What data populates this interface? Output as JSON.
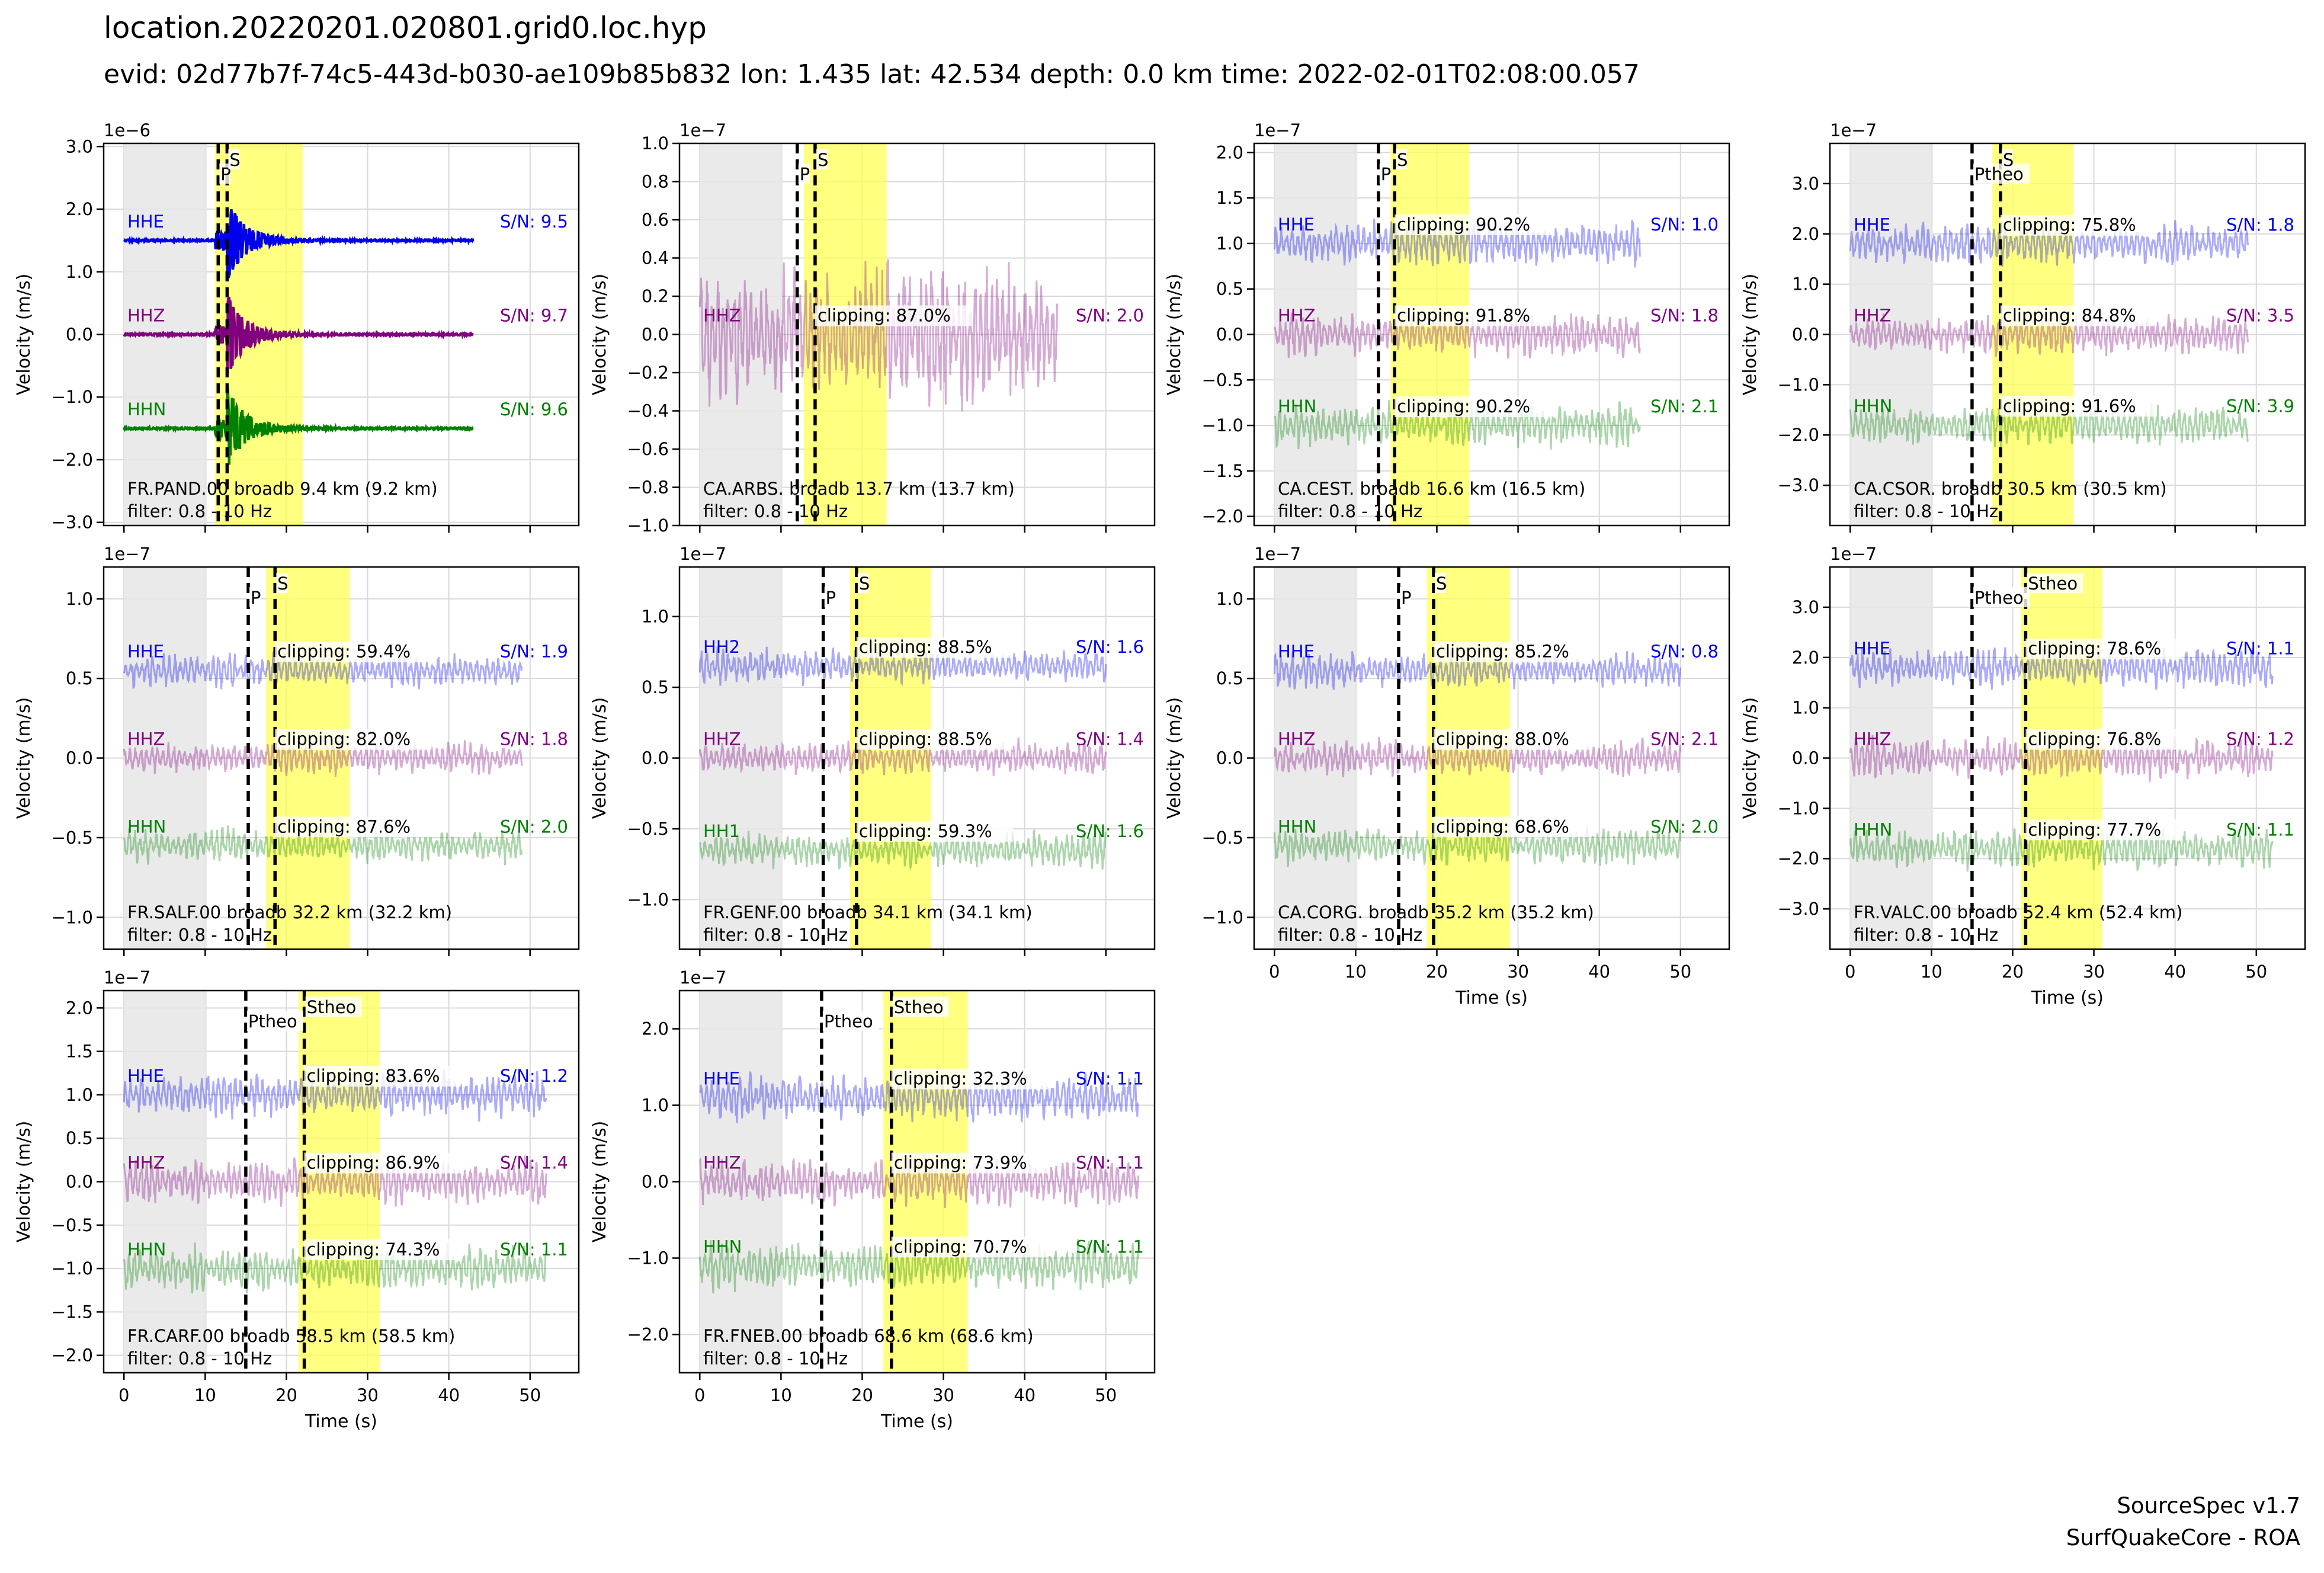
{
  "figure": {
    "title": "location.20220201.020801.grid0.loc.hyp",
    "subtitle": "evid: 02d77b7f-74c5-443d-b030-ae109b85b832 lon: 1.435 lat: 42.534 depth: 0.0 km time: 2022-02-01T02:08:00.057",
    "footer_line1": "SourceSpec v1.7",
    "footer_line2": "SurfQuakeCore - ROA",
    "ylabel": "Velocity (m/s)",
    "xlabel": "Time (s)",
    "filter_label": "filter: 0.8 - 10 Hz",
    "colors": {
      "HHE": "#0000ee",
      "HHZ": "#800080",
      "HHN": "#008000",
      "signal_window": "#ffff55",
      "noise_window": "#e6e6e6",
      "picks": "#000000",
      "grid": "#d9d9d9"
    }
  },
  "chart_data": [
    {
      "type": "line",
      "station": "FR.PAND.00 broadb 9.4 km (9.2 km)",
      "scale_label": "1e−6",
      "ylim": [
        -3.05,
        3.05
      ],
      "yticks": [
        -3,
        -2,
        -1,
        0,
        1,
        2,
        3
      ],
      "ytick_labels": [
        "−3.0",
        "−2.0",
        "−1.0",
        "0.0",
        "1.0",
        "2.0",
        "3.0"
      ],
      "xlim": [
        -2.5,
        56
      ],
      "xticks": [
        0,
        10,
        20,
        30,
        40,
        50
      ],
      "show_x": false,
      "noise_window": [
        0,
        10.2
      ],
      "signal_window": [
        11.2,
        22
      ],
      "picks": [
        {
          "label": "P",
          "t": 11.6
        },
        {
          "label": "S",
          "t": 12.7
        }
      ],
      "duration": 43,
      "amp": 0.12,
      "clear": true,
      "series": [
        {
          "channel": "HHE",
          "offset": 1.5,
          "sn": "S/N: 9.5",
          "clipping": "",
          "color": "#0000ee"
        },
        {
          "channel": "HHZ",
          "offset": 0.0,
          "sn": "S/N: 9.7",
          "clipping": "",
          "color": "#800080"
        },
        {
          "channel": "HHN",
          "offset": -1.5,
          "sn": "S/N: 9.6",
          "clipping": "",
          "color": "#008000"
        }
      ]
    },
    {
      "type": "line",
      "station": "CA.ARBS. broadb 13.7 km (13.7 km)",
      "scale_label": "1e−7",
      "ylim": [
        -1.0,
        1.0
      ],
      "yticks": [
        -1,
        -0.8,
        -0.6,
        -0.4,
        -0.2,
        0,
        0.2,
        0.4,
        0.6,
        0.8,
        1.0
      ],
      "ytick_labels": [
        "−1.0",
        "−0.8",
        "−0.6",
        "−0.4",
        "−0.2",
        "0.0",
        "0.2",
        "0.4",
        "0.6",
        "0.8",
        "1.0"
      ],
      "xlim": [
        -2.5,
        56
      ],
      "xticks": [
        0,
        10,
        20,
        30,
        40,
        50
      ],
      "show_x": false,
      "noise_window": [
        0,
        10.2
      ],
      "signal_window": [
        12.8,
        23
      ],
      "picks": [
        {
          "label": "P",
          "t": 12.0
        },
        {
          "label": "S",
          "t": 14.2
        }
      ],
      "duration": 44,
      "amp": 0.45,
      "clear": false,
      "series": [
        {
          "channel": "HHZ",
          "offset": 0.0,
          "sn": "S/N: 2.0",
          "clipping": "clipping: 87.0%",
          "color": "#800080"
        }
      ]
    },
    {
      "type": "line",
      "station": "CA.CEST. broadb 16.6 km (16.5 km)",
      "scale_label": "1e−7",
      "ylim": [
        -2.1,
        2.1
      ],
      "yticks": [
        -2,
        -1.5,
        -1,
        -0.5,
        0,
        0.5,
        1,
        1.5,
        2
      ],
      "ytick_labels": [
        "−2.0",
        "−1.5",
        "−1.0",
        "−0.5",
        "0.0",
        "0.5",
        "1.0",
        "1.5",
        "2.0"
      ],
      "xlim": [
        -2.5,
        56
      ],
      "xticks": [
        0,
        10,
        20,
        30,
        40,
        50
      ],
      "show_x": false,
      "noise_window": [
        0,
        10.2
      ],
      "signal_window": [
        14.3,
        24
      ],
      "picks": [
        {
          "label": "P",
          "t": 12.8
        },
        {
          "label": "S",
          "t": 14.8
        }
      ],
      "duration": 45,
      "amp": 0.3,
      "clear": false,
      "series": [
        {
          "channel": "HHE",
          "offset": 1.0,
          "sn": "S/N: 1.0",
          "clipping": "clipping: 90.2%",
          "color": "#0000ee"
        },
        {
          "channel": "HHZ",
          "offset": 0.0,
          "sn": "S/N: 1.8",
          "clipping": "clipping: 91.8%",
          "color": "#800080"
        },
        {
          "channel": "HHN",
          "offset": -1.0,
          "sn": "S/N: 2.1",
          "clipping": "clipping: 90.2%",
          "color": "#008000"
        }
      ]
    },
    {
      "type": "line",
      "station": "CA.CSOR. broadb 30.5 km (30.5 km)",
      "scale_label": "1e−7",
      "ylim": [
        -3.8,
        3.8
      ],
      "yticks": [
        -3,
        -2,
        -1,
        0,
        1,
        2,
        3
      ],
      "ytick_labels": [
        "−3.0",
        "−2.0",
        "−1.0",
        "0.0",
        "1.0",
        "2.0",
        "3.0"
      ],
      "xlim": [
        -2.5,
        56
      ],
      "xticks": [
        0,
        10,
        20,
        30,
        40,
        50
      ],
      "show_x": false,
      "noise_window": [
        0,
        10.2
      ],
      "signal_window": [
        17.5,
        27.5
      ],
      "picks": [
        {
          "label": "Ptheo",
          "t": 15.0
        },
        {
          "label": "S",
          "t": 18.5
        }
      ],
      "duration": 49,
      "amp": 0.5,
      "clear": false,
      "series": [
        {
          "channel": "HHE",
          "offset": 1.8,
          "sn": "S/N: 1.8",
          "clipping": "clipping: 75.8%",
          "color": "#0000ee"
        },
        {
          "channel": "HHZ",
          "offset": 0.0,
          "sn": "S/N: 3.5",
          "clipping": "clipping: 84.8%",
          "color": "#800080"
        },
        {
          "channel": "HHN",
          "offset": -1.8,
          "sn": "S/N: 3.9",
          "clipping": "clipping: 91.6%",
          "color": "#008000"
        }
      ]
    },
    {
      "type": "line",
      "station": "FR.SALF.00 broadb 32.2 km (32.2 km)",
      "scale_label": "1e−7",
      "ylim": [
        -1.2,
        1.2
      ],
      "yticks": [
        -1,
        -0.5,
        0,
        0.5,
        1
      ],
      "ytick_labels": [
        "−1.0",
        "−0.5",
        "0.0",
        "0.5",
        "1.0"
      ],
      "xlim": [
        -2.5,
        56
      ],
      "xticks": [
        0,
        10,
        20,
        30,
        40,
        50
      ],
      "show_x": false,
      "noise_window": [
        0,
        10.2
      ],
      "signal_window": [
        17.5,
        27.8
      ],
      "picks": [
        {
          "label": "P",
          "t": 15.3
        },
        {
          "label": "S",
          "t": 18.6
        }
      ],
      "duration": 49,
      "amp": 0.13,
      "clear": false,
      "series": [
        {
          "channel": "HHE",
          "offset": 0.55,
          "sn": "S/N: 1.9",
          "clipping": "clipping: 59.4%",
          "color": "#0000ee"
        },
        {
          "channel": "HHZ",
          "offset": 0.0,
          "sn": "S/N: 1.8",
          "clipping": "clipping: 82.0%",
          "color": "#800080"
        },
        {
          "channel": "HHN",
          "offset": -0.55,
          "sn": "S/N: 2.0",
          "clipping": "clipping: 87.6%",
          "color": "#008000"
        }
      ]
    },
    {
      "type": "line",
      "station": "FR.GENF.00 broadb 34.1 km (34.1 km)",
      "scale_label": "1e−7",
      "ylim": [
        -1.35,
        1.35
      ],
      "yticks": [
        -1,
        -0.5,
        0,
        0.5,
        1
      ],
      "ytick_labels": [
        "−1.0",
        "−0.5",
        "0.0",
        "0.5",
        "1.0"
      ],
      "xlim": [
        -2.5,
        56
      ],
      "xticks": [
        0,
        10,
        20,
        30,
        40,
        50
      ],
      "show_x": false,
      "noise_window": [
        0,
        10.2
      ],
      "signal_window": [
        18.5,
        28.5
      ],
      "picks": [
        {
          "label": "P",
          "t": 15.2
        },
        {
          "label": "S",
          "t": 19.3
        }
      ],
      "duration": 50,
      "amp": 0.15,
      "clear": false,
      "series": [
        {
          "channel": "HH2",
          "offset": 0.65,
          "sn": "S/N: 1.6",
          "clipping": "clipping: 88.5%",
          "color": "#0000ee"
        },
        {
          "channel": "HHZ",
          "offset": 0.0,
          "sn": "S/N: 1.4",
          "clipping": "clipping: 88.5%",
          "color": "#800080"
        },
        {
          "channel": "HH1",
          "offset": -0.65,
          "sn": "S/N: 1.6",
          "clipping": "clipping: 59.3%",
          "color": "#008000"
        }
      ]
    },
    {
      "type": "line",
      "station": "CA.CORG. broadb 35.2 km (35.2 km)",
      "scale_label": "1e−7",
      "ylim": [
        -1.2,
        1.2
      ],
      "yticks": [
        -1,
        -0.5,
        0,
        0.5,
        1
      ],
      "ytick_labels": [
        "−1.0",
        "−0.5",
        "0.0",
        "0.5",
        "1.0"
      ],
      "xlim": [
        -2.5,
        56
      ],
      "xticks": [
        0,
        10,
        20,
        30,
        40,
        50
      ],
      "show_x": true,
      "noise_window": [
        0,
        10.2
      ],
      "signal_window": [
        18.8,
        29
      ],
      "picks": [
        {
          "label": "P",
          "t": 15.3
        },
        {
          "label": "S",
          "t": 19.6
        }
      ],
      "duration": 50,
      "amp": 0.14,
      "clear": false,
      "series": [
        {
          "channel": "HHE",
          "offset": 0.55,
          "sn": "S/N: 0.8",
          "clipping": "clipping: 85.2%",
          "color": "#0000ee"
        },
        {
          "channel": "HHZ",
          "offset": 0.0,
          "sn": "S/N: 2.1",
          "clipping": "clipping: 88.0%",
          "color": "#800080"
        },
        {
          "channel": "HHN",
          "offset": -0.55,
          "sn": "S/N: 2.0",
          "clipping": "clipping: 68.6%",
          "color": "#008000"
        }
      ]
    },
    {
      "type": "line",
      "station": "FR.VALC.00 broadb 52.4 km (52.4 km)",
      "scale_label": "1e−7",
      "ylim": [
        -3.8,
        3.8
      ],
      "yticks": [
        -3,
        -2,
        -1,
        0,
        1,
        2,
        3
      ],
      "ytick_labels": [
        "−3.0",
        "−2.0",
        "−1.0",
        "0.0",
        "1.0",
        "2.0",
        "3.0"
      ],
      "xlim": [
        -2.5,
        56
      ],
      "xticks": [
        0,
        10,
        20,
        30,
        40,
        50
      ],
      "show_x": true,
      "noise_window": [
        0,
        10.2
      ],
      "signal_window": [
        21,
        31
      ],
      "picks": [
        {
          "label": "Ptheo",
          "t": 15.0
        },
        {
          "label": "Stheo",
          "t": 21.6
        }
      ],
      "duration": 52,
      "amp": 0.5,
      "clear": false,
      "series": [
        {
          "channel": "HHE",
          "offset": 1.8,
          "sn": "S/N: 1.1",
          "clipping": "clipping: 78.6%",
          "color": "#0000ee"
        },
        {
          "channel": "HHZ",
          "offset": 0.0,
          "sn": "S/N: 1.2",
          "clipping": "clipping: 76.8%",
          "color": "#800080"
        },
        {
          "channel": "HHN",
          "offset": -1.8,
          "sn": "S/N: 1.1",
          "clipping": "clipping: 77.7%",
          "color": "#008000"
        }
      ]
    },
    {
      "type": "line",
      "station": "FR.CARF.00 broadb 58.5 km (58.5 km)",
      "scale_label": "1e−7",
      "ylim": [
        -2.2,
        2.2
      ],
      "yticks": [
        -2,
        -1.5,
        -1,
        -0.5,
        0,
        0.5,
        1,
        1.5,
        2
      ],
      "ytick_labels": [
        "−2.0",
        "−1.5",
        "−1.0",
        "−0.5",
        "0.0",
        "0.5",
        "1.0",
        "1.5",
        "2.0"
      ],
      "xlim": [
        -2.5,
        56
      ],
      "xticks": [
        0,
        10,
        20,
        30,
        40,
        50
      ],
      "show_x": true,
      "noise_window": [
        0,
        10.2
      ],
      "signal_window": [
        21.5,
        31.5
      ],
      "picks": [
        {
          "label": "Ptheo",
          "t": 15.0
        },
        {
          "label": "Stheo",
          "t": 22.2
        }
      ],
      "duration": 52,
      "amp": 0.33,
      "clear": false,
      "series": [
        {
          "channel": "HHE",
          "offset": 1.0,
          "sn": "S/N: 1.2",
          "clipping": "clipping: 83.6%",
          "color": "#0000ee"
        },
        {
          "channel": "HHZ",
          "offset": 0.0,
          "sn": "S/N: 1.4",
          "clipping": "clipping: 86.9%",
          "color": "#800080"
        },
        {
          "channel": "HHN",
          "offset": -1.0,
          "sn": "S/N: 1.1",
          "clipping": "clipping: 74.3%",
          "color": "#008000"
        }
      ]
    },
    {
      "type": "line",
      "station": "FR.FNEB.00 broadb 68.6 km (68.6 km)",
      "scale_label": "1e−7",
      "ylim": [
        -2.5,
        2.5
      ],
      "yticks": [
        -2,
        -1,
        0,
        1,
        2
      ],
      "ytick_labels": [
        "−2.0",
        "−1.0",
        "0.0",
        "1.0",
        "2.0"
      ],
      "xlim": [
        -2.5,
        56
      ],
      "xticks": [
        0,
        10,
        20,
        30,
        40,
        50
      ],
      "show_x": true,
      "noise_window": [
        0,
        10.2
      ],
      "signal_window": [
        22.6,
        33
      ],
      "picks": [
        {
          "label": "Ptheo",
          "t": 15.0
        },
        {
          "label": "Stheo",
          "t": 23.6
        }
      ],
      "duration": 54,
      "amp": 0.38,
      "clear": false,
      "series": [
        {
          "channel": "HHE",
          "offset": 1.1,
          "sn": "S/N: 1.1",
          "clipping": "clipping: 32.3%",
          "color": "#0000ee"
        },
        {
          "channel": "HHZ",
          "offset": 0.0,
          "sn": "S/N: 1.1",
          "clipping": "clipping: 73.9%",
          "color": "#800080"
        },
        {
          "channel": "HHN",
          "offset": -1.1,
          "sn": "S/N: 1.1",
          "clipping": "clipping: 70.7%",
          "color": "#008000"
        }
      ]
    }
  ]
}
